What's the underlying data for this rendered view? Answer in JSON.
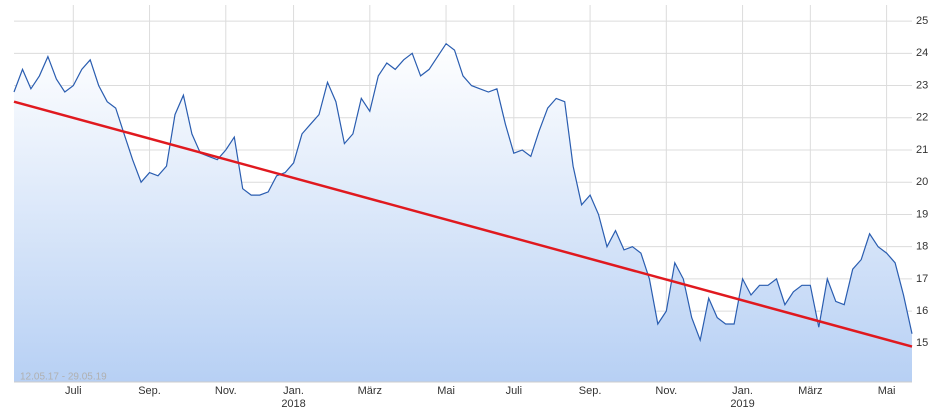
{
  "chart_data": {
    "type": "line",
    "watermark": "12.05.17 - 29.05.19",
    "categories": [
      null,
      null,
      null,
      null,
      null,
      null,
      null,
      "Juli",
      null,
      null,
      null,
      null,
      null,
      null,
      null,
      null,
      "Sep.",
      null,
      null,
      null,
      null,
      null,
      null,
      null,
      null,
      "Nov.",
      null,
      null,
      null,
      null,
      null,
      null,
      null,
      "Jan.",
      null,
      null,
      null,
      null,
      null,
      null,
      null,
      null,
      "März",
      null,
      null,
      null,
      null,
      null,
      null,
      null,
      null,
      "Mai",
      null,
      null,
      null,
      null,
      null,
      null,
      null,
      "Juli",
      null,
      null,
      null,
      null,
      null,
      null,
      null,
      null,
      "Sep.",
      null,
      null,
      null,
      null,
      null,
      null,
      null,
      null,
      "Nov.",
      null,
      null,
      null,
      null,
      null,
      null,
      null,
      null,
      "Jan.",
      null,
      null,
      null,
      null,
      null,
      null,
      null,
      "März",
      null,
      null,
      null,
      null,
      null,
      null,
      null,
      null,
      "Mai",
      null,
      null,
      null
    ],
    "year_labels": [
      null,
      null,
      null,
      null,
      null,
      null,
      null,
      null,
      null,
      null,
      null,
      null,
      null,
      null,
      null,
      null,
      null,
      null,
      null,
      null,
      null,
      null,
      null,
      null,
      null,
      null,
      null,
      null,
      null,
      null,
      null,
      null,
      null,
      "2018",
      null,
      null,
      null,
      null,
      null,
      null,
      null,
      null,
      null,
      null,
      null,
      null,
      null,
      null,
      null,
      null,
      null,
      null,
      null,
      null,
      null,
      null,
      null,
      null,
      null,
      null,
      null,
      null,
      null,
      null,
      null,
      null,
      null,
      null,
      null,
      null,
      null,
      null,
      null,
      null,
      null,
      null,
      null,
      null,
      null,
      null,
      null,
      null,
      null,
      null,
      null,
      null,
      "2019",
      null,
      null,
      null,
      null,
      null,
      null,
      null,
      null,
      null,
      null,
      null,
      null,
      null,
      null,
      null,
      null,
      null,
      null,
      null,
      null
    ],
    "series": [
      {
        "color": "#2a5db0",
        "values": [
          22.8,
          23.5,
          22.9,
          23.3,
          23.9,
          23.2,
          22.8,
          23.0,
          23.5,
          23.8,
          23.0,
          22.5,
          22.3,
          21.5,
          20.7,
          20.0,
          20.3,
          20.2,
          20.5,
          22.1,
          22.7,
          21.5,
          20.9,
          20.8,
          20.7,
          21.0,
          21.4,
          19.8,
          19.6,
          19.6,
          19.7,
          20.2,
          20.3,
          20.6,
          21.5,
          21.8,
          22.1,
          23.1,
          22.5,
          21.2,
          21.5,
          22.6,
          22.2,
          23.3,
          23.7,
          23.5,
          23.8,
          24.0,
          23.3,
          23.5,
          23.9,
          24.3,
          24.1,
          23.3,
          23.0,
          22.9,
          22.8,
          22.9,
          21.8,
          20.9,
          21.0,
          20.8,
          21.6,
          22.3,
          22.6,
          22.5,
          20.5,
          19.3,
          19.6,
          19.0,
          18.0,
          18.5,
          17.9,
          18.0,
          17.8,
          17.0,
          15.6,
          16.0,
          17.5,
          17.0,
          15.8,
          15.1,
          16.4,
          15.8,
          15.6,
          15.6,
          17.0,
          16.5,
          16.8,
          16.8,
          17.0,
          16.2,
          16.6,
          16.8,
          16.8,
          15.5,
          17.0,
          16.3,
          16.2,
          17.3,
          17.6,
          18.4,
          18.0,
          17.8,
          17.5,
          16.5,
          15.3
        ]
      }
    ],
    "trend": {
      "color": "#e0191f",
      "values": [
        22.5,
        14.9
      ]
    },
    "ylim": [
      13.8,
      25.5
    ],
    "yticks": [
      15,
      16,
      17,
      18,
      19,
      20,
      21,
      22,
      23,
      24,
      25
    ],
    "grid": true
  }
}
